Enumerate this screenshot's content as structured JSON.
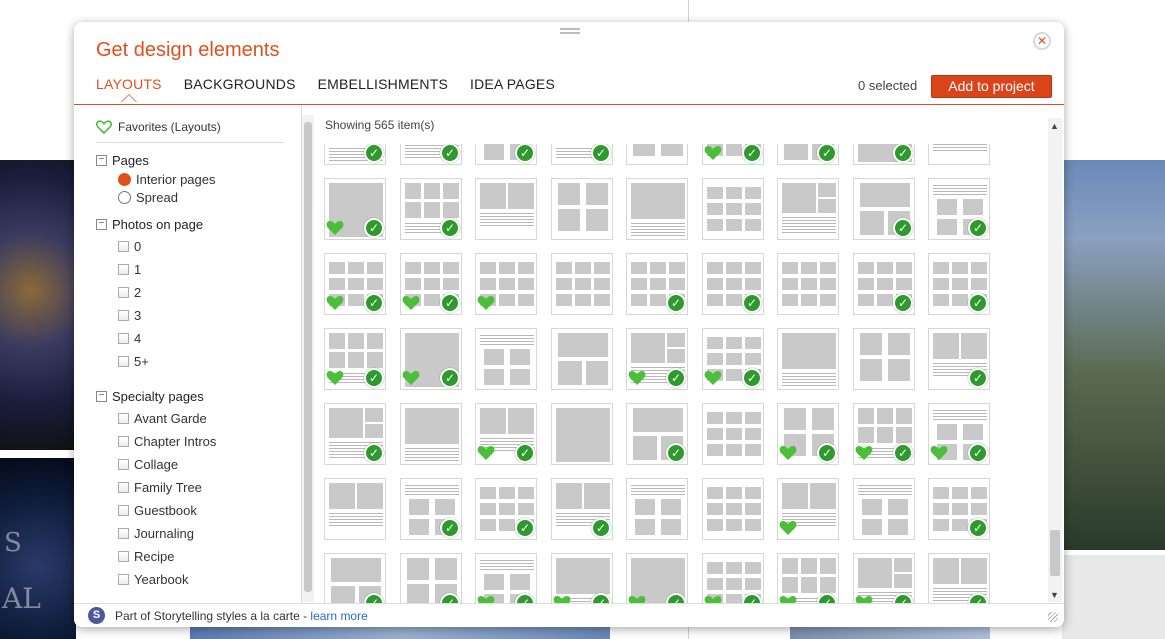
{
  "dialog": {
    "title": "Get design elements",
    "tabs": [
      {
        "label": "LAYOUTS",
        "active": true
      },
      {
        "label": "BACKGROUNDS",
        "active": false
      },
      {
        "label": "EMBELLISHMENTS",
        "active": false
      },
      {
        "label": "IDEA PAGES",
        "active": false
      }
    ],
    "selected_count": "0 selected",
    "add_button": "Add to project",
    "close_icon": "close-icon"
  },
  "sidebar": {
    "favorites": "Favorites (Layouts)",
    "groups": {
      "pages": {
        "label": "Pages",
        "options": [
          {
            "label": "Interior pages",
            "selected": true
          },
          {
            "label": "Spread",
            "selected": false
          }
        ]
      },
      "photos": {
        "label": "Photos on page",
        "options": [
          "0",
          "1",
          "2",
          "3",
          "4",
          "5+"
        ]
      },
      "specialty": {
        "label": "Specialty pages",
        "options": [
          "Avant Garde",
          "Chapter Intros",
          "Collage",
          "Family Tree",
          "Guestbook",
          "Journaling",
          "Recipe",
          "Yearbook"
        ]
      }
    }
  },
  "main": {
    "showing": "Showing 565 item(s)"
  },
  "footer": {
    "text": "Part of Storytelling styles a la carte - ",
    "link": "learn more",
    "logo": "S"
  },
  "colors": {
    "accent": "#e0501e",
    "button": "#d9441a",
    "check_green": "#2e9a2e",
    "heart_green": "#4cbf3a",
    "thumb_gray": "#c9c9c9",
    "link": "#2a6ac0"
  }
}
